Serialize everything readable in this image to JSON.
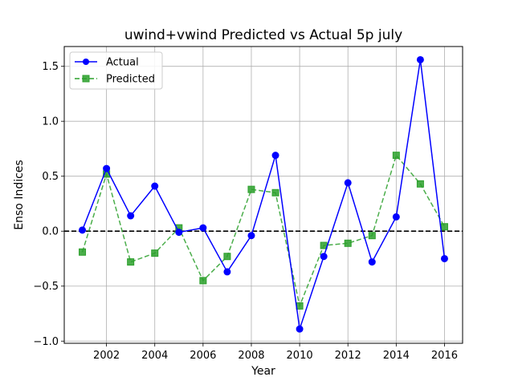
{
  "chart_data": {
    "type": "line",
    "title": "uwind+vwind Predicted vs Actual 5p july",
    "xlabel": "Year",
    "ylabel": "Enso Indices",
    "x": [
      2001,
      2002,
      2003,
      2004,
      2005,
      2006,
      2007,
      2008,
      2009,
      2010,
      2011,
      2012,
      2013,
      2014,
      2015,
      2016
    ],
    "xlim": [
      2000.25,
      2016.75
    ],
    "ylim": [
      -1.02,
      1.68
    ],
    "xticks": [
      2002,
      2004,
      2006,
      2008,
      2010,
      2012,
      2014,
      2016
    ],
    "yticks": [
      -1.0,
      -0.5,
      0.0,
      0.5,
      1.0,
      1.5
    ],
    "ytick_labels": [
      "−1.0",
      "−0.5",
      "0.0",
      "0.5",
      "1.0",
      "1.5"
    ],
    "grid": true,
    "legend_position": "top-left",
    "zero_line": {
      "y": 0,
      "color": "#000000",
      "style": "dashed"
    },
    "series": [
      {
        "name": "Actual",
        "color": "#0000ff",
        "marker": "circle",
        "line_style": "solid",
        "values": [
          0.01,
          0.57,
          0.14,
          0.41,
          -0.01,
          0.03,
          -0.37,
          -0.04,
          0.69,
          -0.89,
          -0.23,
          0.44,
          -0.28,
          0.13,
          1.56,
          -0.25
        ]
      },
      {
        "name": "Predicted",
        "color": "#2ca02c",
        "marker": "square",
        "line_style": "dashed",
        "values": [
          -0.19,
          0.52,
          -0.28,
          -0.2,
          0.03,
          -0.45,
          -0.23,
          0.38,
          0.35,
          -0.68,
          -0.13,
          -0.11,
          -0.04,
          0.69,
          0.43,
          0.04
        ]
      }
    ]
  }
}
